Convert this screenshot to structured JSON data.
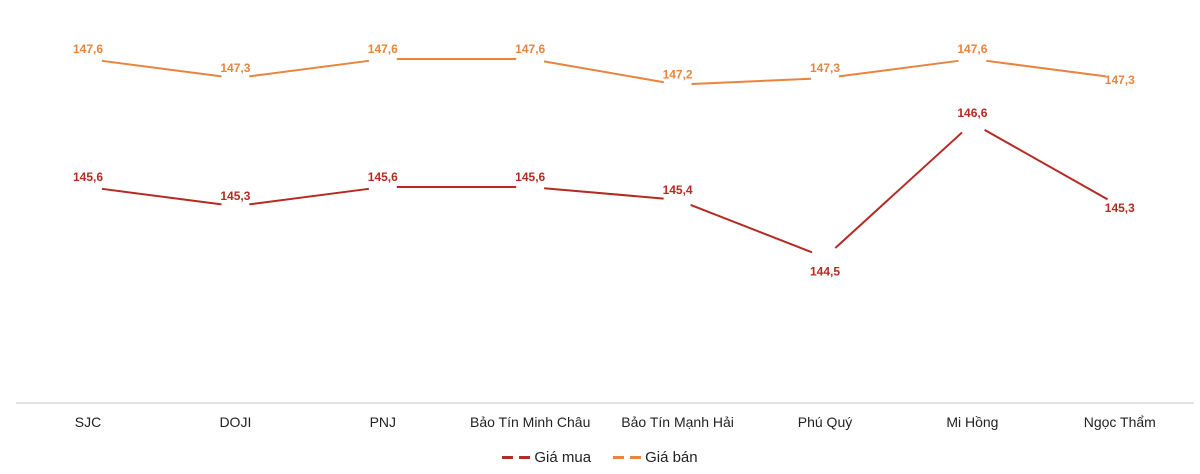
{
  "chart_data": {
    "type": "line",
    "title": "",
    "xlabel": "",
    "ylabel": "",
    "categories": [
      "SJC",
      "DOJI",
      "PNJ",
      "Bảo Tín Minh Châu",
      "Bảo Tín Mạnh Hải",
      "Phú Quý",
      "Mi Hồng",
      "Ngọc Thẩm"
    ],
    "series": [
      {
        "name": "Giá mua",
        "color": "#b52a22",
        "values": [
          145.6,
          145.3,
          145.6,
          145.6,
          145.4,
          144.5,
          146.6,
          145.3
        ],
        "labels": [
          "145,6",
          "145,3",
          "145,6",
          "145,6",
          "145,4",
          "144,5",
          "146,6",
          "145,3"
        ]
      },
      {
        "name": "Giá bán",
        "color": "#e8843e",
        "values": [
          147.6,
          147.3,
          147.6,
          147.6,
          147.2,
          147.3,
          147.6,
          147.3
        ],
        "labels": [
          "147,6",
          "147,3",
          "147,6",
          "147,6",
          "147,2",
          "147,3",
          "147,6",
          "147,3"
        ]
      }
    ],
    "grid": false,
    "legend_position": "bottom",
    "data_labels": true
  },
  "legend": [
    {
      "label": "Giá mua",
      "color": "#b52a22"
    },
    {
      "label": "Giá bán",
      "color": "#e8843e"
    }
  ],
  "axis": {
    "color": "#d9d9d9"
  }
}
